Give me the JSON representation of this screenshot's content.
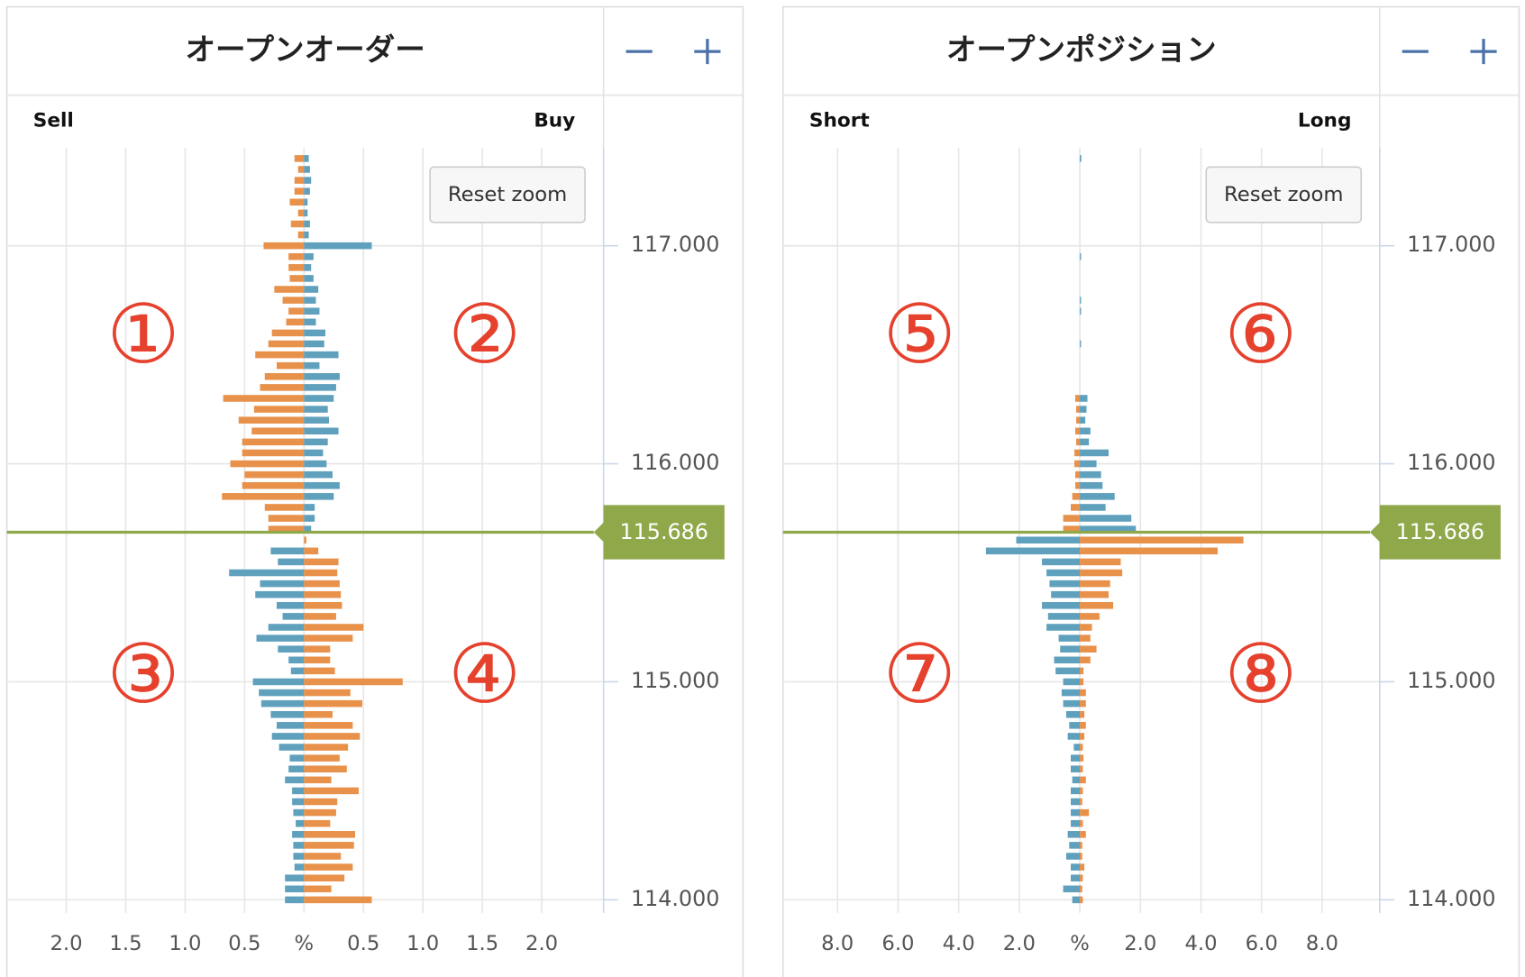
{
  "chart_data": [
    {
      "type": "bar",
      "title": "オープンオーダー",
      "x": [
        117.4,
        117.35,
        117.3,
        117.25,
        117.2,
        117.15,
        117.1,
        117.05,
        117,
        116.95,
        116.9,
        116.85,
        116.8,
        116.75,
        116.7,
        116.65,
        116.6,
        116.55,
        116.5,
        116.45,
        116.4,
        116.35,
        116.3,
        116.25,
        116.2,
        116.15,
        116.1,
        116.05,
        116,
        115.95,
        115.9,
        115.85,
        115.8,
        115.75,
        115.7,
        115.65,
        115.6,
        115.55,
        115.5,
        115.45,
        115.4,
        115.35,
        115.3,
        115.25,
        115.2,
        115.15,
        115.1,
        115.05,
        115,
        114.95,
        114.9,
        114.85,
        114.8,
        114.75,
        114.7,
        114.65,
        114.6,
        114.55,
        114.5,
        114.45,
        114.4,
        114.35,
        114.3,
        114.25,
        114.2,
        114.15,
        114.1,
        114.05,
        114
      ],
      "series": [
        {
          "name": "Sell",
          "side": "left",
          "colors": {
            "above": "#e8914a",
            "below": "#5fa0bd"
          },
          "values": [
            0.08,
            0.05,
            0.08,
            0.08,
            0.12,
            0.05,
            0.11,
            0.05,
            0.34,
            0.13,
            0.13,
            0.12,
            0.25,
            0.18,
            0.13,
            0.15,
            0.27,
            0.3,
            0.41,
            0.23,
            0.33,
            0.37,
            0.68,
            0.42,
            0.55,
            0.44,
            0.52,
            0.52,
            0.62,
            0.5,
            0.52,
            0.69,
            0.33,
            0.3,
            0.3,
            0,
            0.28,
            0.22,
            0.63,
            0.37,
            0.41,
            0.23,
            0.18,
            0.3,
            0.4,
            0.22,
            0.13,
            0.11,
            0.43,
            0.38,
            0.36,
            0.28,
            0.23,
            0.27,
            0.21,
            0.12,
            0.13,
            0.16,
            0.1,
            0.1,
            0.09,
            0.07,
            0.1,
            0.09,
            0.09,
            0.08,
            0.16,
            0.16,
            0.16
          ]
        },
        {
          "name": "Buy",
          "side": "right",
          "colors": {
            "above": "#5fa0bd",
            "below": "#e8914a"
          },
          "values": [
            0.04,
            0.05,
            0.06,
            0.05,
            0.03,
            0.03,
            0.05,
            0.04,
            0.57,
            0.08,
            0.06,
            0.08,
            0.12,
            0.1,
            0.13,
            0.1,
            0.18,
            0.17,
            0.29,
            0.13,
            0.3,
            0.27,
            0.25,
            0.2,
            0.21,
            0.29,
            0.2,
            0.16,
            0.19,
            0.24,
            0.3,
            0.25,
            0.09,
            0.09,
            0.06,
            0.02,
            0.12,
            0.29,
            0.28,
            0.3,
            0.31,
            0.32,
            0.27,
            0.5,
            0.41,
            0.22,
            0.22,
            0.26,
            0.83,
            0.39,
            0.49,
            0.24,
            0.41,
            0.47,
            0.37,
            0.3,
            0.36,
            0.23,
            0.46,
            0.28,
            0.27,
            0.22,
            0.43,
            0.42,
            0.31,
            0.41,
            0.34,
            0.23,
            0.57
          ]
        }
      ],
      "xlim": [
        -2.5,
        2.52
      ],
      "xticks": [
        {
          "value": -2,
          "label": "2.0"
        },
        {
          "value": -1.5,
          "label": "1.5"
        },
        {
          "value": -1,
          "label": "1.0"
        },
        {
          "value": -0.5,
          "label": "0.5"
        },
        {
          "value": 0,
          "label": "%"
        },
        {
          "value": 0.5,
          "label": "0.5"
        },
        {
          "value": 1,
          "label": "1.0"
        },
        {
          "value": 1.5,
          "label": "1.5"
        },
        {
          "value": 2,
          "label": "2.0"
        }
      ],
      "ylim": [
        113.94,
        117.45
      ],
      "yticks": [
        {
          "value": 114,
          "label": "114.000"
        },
        {
          "value": 115,
          "label": "115.000"
        },
        {
          "value": 116,
          "label": "116.000"
        },
        {
          "value": 117,
          "label": "117.000"
        }
      ],
      "current_price": 115.686,
      "current_color": "#8fa84a",
      "reset_zoom": "Reset zoom",
      "grid": true,
      "annotations": [
        "①",
        "②",
        "③",
        "④"
      ]
    },
    {
      "type": "bar",
      "title": "オープンポジション",
      "x": [
        117.4,
        117.35,
        117.3,
        117.25,
        117.2,
        117.15,
        117.1,
        117.05,
        117,
        116.95,
        116.9,
        116.85,
        116.8,
        116.75,
        116.7,
        116.65,
        116.6,
        116.55,
        116.5,
        116.45,
        116.4,
        116.35,
        116.3,
        116.25,
        116.2,
        116.15,
        116.1,
        116.05,
        116,
        115.95,
        115.9,
        115.85,
        115.8,
        115.75,
        115.7,
        115.65,
        115.6,
        115.55,
        115.5,
        115.45,
        115.4,
        115.35,
        115.3,
        115.25,
        115.2,
        115.15,
        115.1,
        115.05,
        115,
        114.95,
        114.9,
        114.85,
        114.8,
        114.75,
        114.7,
        114.65,
        114.6,
        114.55,
        114.5,
        114.45,
        114.4,
        114.35,
        114.3,
        114.25,
        114.2,
        114.15,
        114.1,
        114.05,
        114
      ],
      "series": [
        {
          "name": "Short",
          "side": "left",
          "colors": {
            "above": "#e8914a",
            "below": "#5fa0bd"
          },
          "values": [
            0,
            0,
            0,
            0,
            0,
            0,
            0,
            0,
            0,
            0,
            0,
            0,
            0,
            0,
            0,
            0,
            0,
            0,
            0,
            0,
            0,
            0,
            0.15,
            0.12,
            0.12,
            0.15,
            0.12,
            0.18,
            0.18,
            0.15,
            0.15,
            0.25,
            0.3,
            0.55,
            0.55,
            2.1,
            3.1,
            1.25,
            1.1,
            1,
            0.95,
            1.25,
            1.05,
            1.1,
            0.7,
            0.65,
            0.85,
            0.8,
            0.55,
            0.6,
            0.55,
            0.45,
            0.35,
            0.4,
            0.2,
            0.3,
            0.3,
            0.25,
            0.3,
            0.3,
            0.3,
            0.3,
            0.4,
            0.35,
            0.45,
            0.3,
            0.3,
            0.55,
            0.25
          ]
        },
        {
          "name": "Long",
          "side": "right",
          "colors": {
            "above": "#5fa0bd",
            "below": "#e8914a"
          },
          "values": [
            0.05,
            0,
            0,
            0,
            0,
            0,
            0,
            0,
            0,
            0.04,
            0,
            0,
            0,
            0.04,
            0.04,
            0,
            0,
            0.04,
            0,
            0,
            0,
            0,
            0.25,
            0.22,
            0.18,
            0.35,
            0.3,
            0.95,
            0.55,
            0.7,
            0.75,
            1.15,
            0.85,
            1.7,
            1.85,
            5.4,
            4.55,
            1.35,
            1.4,
            1,
            0.95,
            1.1,
            0.65,
            0.4,
            0.35,
            0.55,
            0.35,
            0.12,
            0.12,
            0.2,
            0.2,
            0.15,
            0.2,
            0.15,
            0.1,
            0.12,
            0.1,
            0.2,
            0.1,
            0.08,
            0.3,
            0.1,
            0.2,
            0.08,
            0.08,
            0.15,
            0.1,
            0.08,
            0.1
          ]
        }
      ],
      "xlim": [
        -9.8,
        9.9
      ],
      "xticks": [
        {
          "value": -8,
          "label": "8.0"
        },
        {
          "value": -6,
          "label": "6.0"
        },
        {
          "value": -4,
          "label": "4.0"
        },
        {
          "value": -2,
          "label": "2.0"
        },
        {
          "value": 0,
          "label": "%"
        },
        {
          "value": 2,
          "label": "2.0"
        },
        {
          "value": 4,
          "label": "4.0"
        },
        {
          "value": 6,
          "label": "6.0"
        },
        {
          "value": 8,
          "label": "8.0"
        }
      ],
      "ylim": [
        113.94,
        117.45
      ],
      "yticks": [
        {
          "value": 114,
          "label": "114.000"
        },
        {
          "value": 115,
          "label": "115.000"
        },
        {
          "value": 116,
          "label": "116.000"
        },
        {
          "value": 117,
          "label": "117.000"
        }
      ],
      "current_price": 115.686,
      "current_color": "#8fa84a",
      "reset_zoom": "Reset zoom",
      "grid": true,
      "annotations": [
        "⑤",
        "⑥",
        "⑦",
        "⑧"
      ]
    }
  ]
}
